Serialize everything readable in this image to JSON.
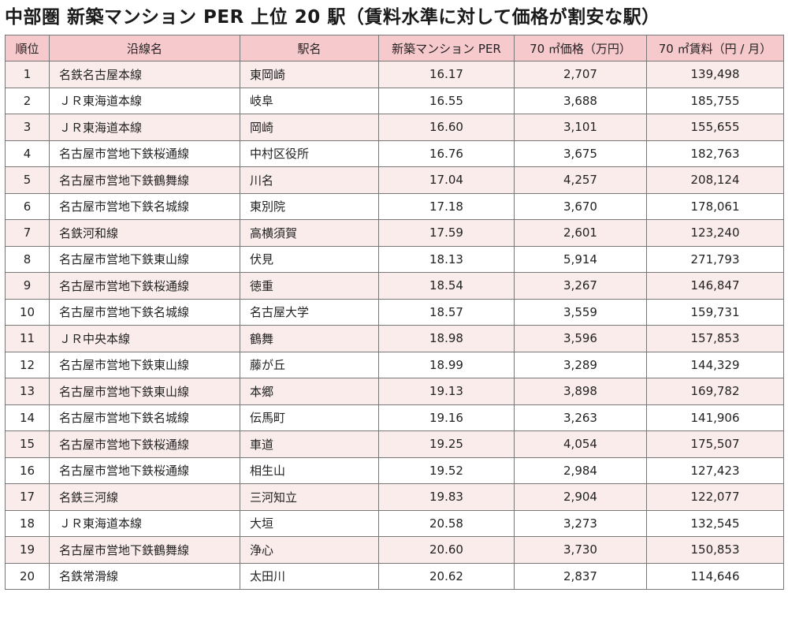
{
  "title": "中部圏 新築マンション PER 上位 20 駅（賃料水準に対して価格が割安な駅）",
  "colors": {
    "header_bg": "#f6c9cd",
    "odd_row_bg": "#fbecec",
    "even_row_bg": "#ffffff"
  },
  "table": {
    "headers": [
      "順位",
      "沿線名",
      "駅名",
      "新築マンション PER",
      "70 ㎡価格（万円）",
      "70 ㎡賃料（円 / 月）"
    ],
    "rows": [
      [
        "1",
        "名鉄名古屋本線",
        "東岡崎",
        "16.17",
        "2,707",
        "139,498"
      ],
      [
        "2",
        "ＪＲ東海道本線",
        "岐阜",
        "16.55",
        "3,688",
        "185,755"
      ],
      [
        "3",
        "ＪＲ東海道本線",
        "岡崎",
        "16.60",
        "3,101",
        "155,655"
      ],
      [
        "4",
        "名古屋市営地下鉄桜通線",
        "中村区役所",
        "16.76",
        "3,675",
        "182,763"
      ],
      [
        "5",
        "名古屋市営地下鉄鶴舞線",
        "川名",
        "17.04",
        "4,257",
        "208,124"
      ],
      [
        "6",
        "名古屋市営地下鉄名城線",
        "東別院",
        "17.18",
        "3,670",
        "178,061"
      ],
      [
        "7",
        "名鉄河和線",
        "高横須賀",
        "17.59",
        "2,601",
        "123,240"
      ],
      [
        "8",
        "名古屋市営地下鉄東山線",
        "伏見",
        "18.13",
        "5,914",
        "271,793"
      ],
      [
        "9",
        "名古屋市営地下鉄桜通線",
        "徳重",
        "18.54",
        "3,267",
        "146,847"
      ],
      [
        "10",
        "名古屋市営地下鉄名城線",
        "名古屋大学",
        "18.57",
        "3,559",
        "159,731"
      ],
      [
        "11",
        "ＪＲ中央本線",
        "鶴舞",
        "18.98",
        "3,596",
        "157,853"
      ],
      [
        "12",
        "名古屋市営地下鉄東山線",
        "藤が丘",
        "18.99",
        "3,289",
        "144,329"
      ],
      [
        "13",
        "名古屋市営地下鉄東山線",
        "本郷",
        "19.13",
        "3,898",
        "169,782"
      ],
      [
        "14",
        "名古屋市営地下鉄名城線",
        "伝馬町",
        "19.16",
        "3,263",
        "141,906"
      ],
      [
        "15",
        "名古屋市営地下鉄桜通線",
        "車道",
        "19.25",
        "4,054",
        "175,507"
      ],
      [
        "16",
        "名古屋市営地下鉄桜通線",
        "相生山",
        "19.52",
        "2,984",
        "127,423"
      ],
      [
        "17",
        "名鉄三河線",
        "三河知立",
        "19.83",
        "2,904",
        "122,077"
      ],
      [
        "18",
        "ＪＲ東海道本線",
        "大垣",
        "20.58",
        "3,273",
        "132,545"
      ],
      [
        "19",
        "名古屋市営地下鉄鶴舞線",
        "浄心",
        "20.60",
        "3,730",
        "150,853"
      ],
      [
        "20",
        "名鉄常滑線",
        "太田川",
        "20.62",
        "2,837",
        "114,646"
      ]
    ]
  }
}
